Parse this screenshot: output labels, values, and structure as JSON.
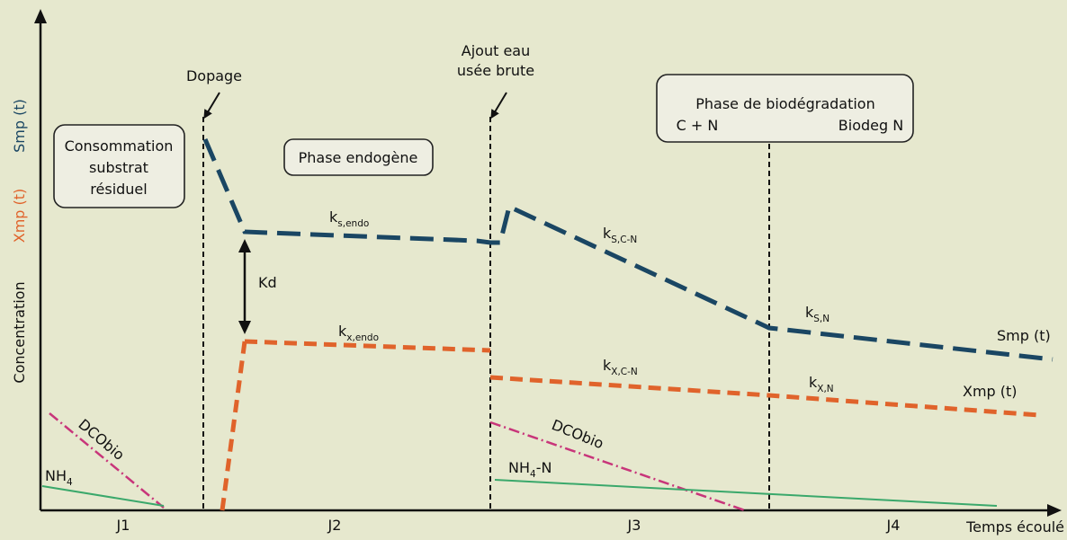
{
  "axes": {
    "y_labels": [
      {
        "text": "Smp (t)",
        "color": "#1a4663"
      },
      {
        "text": "Xmp (t)",
        "color": "#e0632b"
      },
      {
        "text": "Concentration",
        "color": "#111111"
      }
    ],
    "x_label": "Temps écoulé",
    "days": [
      "J1",
      "J2",
      "J3",
      "J4"
    ]
  },
  "events": {
    "dopage": "Dopage",
    "ajout_line1": "Ajout eau",
    "ajout_line2": "usée brute"
  },
  "boxes": {
    "consommation": [
      "Consommation",
      "substrat",
      "résiduel"
    ],
    "endogene": "Phase endogène",
    "biodeg_title": "Phase de biodégradation",
    "biodeg_left": "C + N",
    "biodeg_right": "Biodeg N"
  },
  "kd": "Kd",
  "rates": {
    "ks_endo": {
      "base": "k",
      "sub": "s,endo"
    },
    "kx_endo": {
      "base": "k",
      "sub": "x,endo"
    },
    "ks_cn": {
      "base": "k",
      "sub": "S,C-N"
    },
    "kx_cn": {
      "base": "k",
      "sub": "X,C-N"
    },
    "ks_n": {
      "base": "k",
      "sub": "S,N"
    },
    "kx_n": {
      "base": "k",
      "sub": "X,N"
    }
  },
  "series": {
    "smp": "Smp (t)",
    "xmp": "Xmp (t)",
    "dcobio_1": "DCObio",
    "dcobio_2": "DCObio",
    "nh4_base": "NH",
    "nh4_sub": "4",
    "nh4n_base": "NH",
    "nh4n_sub": "4",
    "nh4n_suffix": "-N"
  },
  "colors": {
    "smp": "#1a4663",
    "xmp": "#e0632b",
    "dcobio": "#c8357a",
    "nh4": "#3aa86b",
    "background": "#e6e8ce"
  }
}
